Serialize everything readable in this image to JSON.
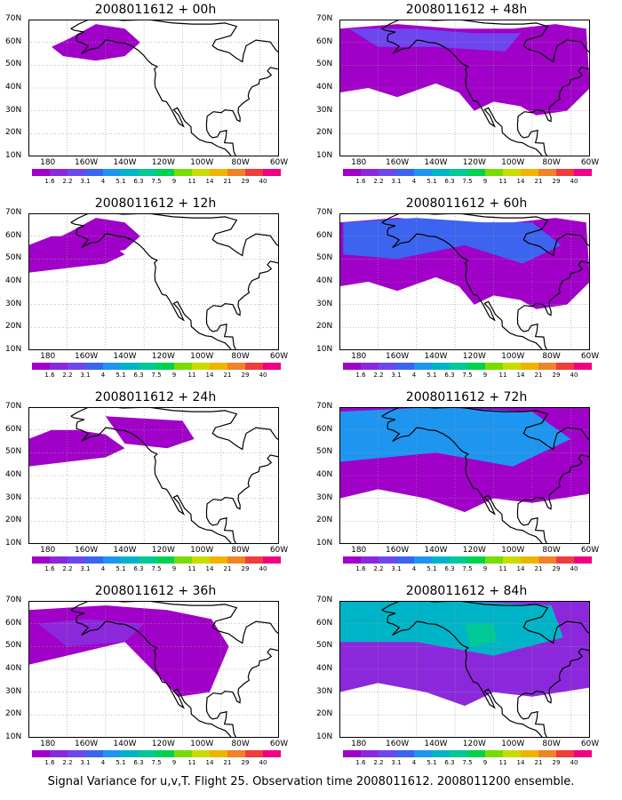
{
  "caption": "Signal Variance for u,v,T. Flight 25. Observation time 2008011612. 2008011200 ensemble.",
  "lat_labels": [
    "70N",
    "60N",
    "50N",
    "40N",
    "30N",
    "20N",
    "10N"
  ],
  "lon_labels": [
    "180",
    "160W",
    "140W",
    "120W",
    "100W",
    "80W",
    "60W"
  ],
  "colorbar": {
    "labels": [
      "1.6",
      "2.2",
      "3.1",
      "4",
      "5.1",
      "6.3",
      "7.5",
      "9",
      "11",
      "14",
      "21",
      "29",
      "40"
    ],
    "colors": [
      "#a000c8",
      "#8c28dc",
      "#6e46f0",
      "#3c64f0",
      "#1e96f0",
      "#00b4c8",
      "#00c896",
      "#00d250",
      "#78dc00",
      "#c8dc00",
      "#f0b400",
      "#f08228",
      "#f03c3c",
      "#f00082"
    ]
  },
  "panels": [
    {
      "title": "2008011612 + 00h",
      "level": 0,
      "extent": 0
    },
    {
      "title": "2008011612 + 12h",
      "level": 0,
      "extent": 1
    },
    {
      "title": "2008011612 + 24h",
      "level": 0,
      "extent": 2
    },
    {
      "title": "2008011612 + 36h",
      "level": 1,
      "extent": 3
    },
    {
      "title": "2008011612 + 48h",
      "level": 2,
      "extent": 4
    },
    {
      "title": "2008011612 + 60h",
      "level": 3,
      "extent": 5
    },
    {
      "title": "2008011612 + 72h",
      "level": 4,
      "extent": 6
    },
    {
      "title": "2008011612 + 84h",
      "level": 5,
      "extent": 7
    }
  ]
}
